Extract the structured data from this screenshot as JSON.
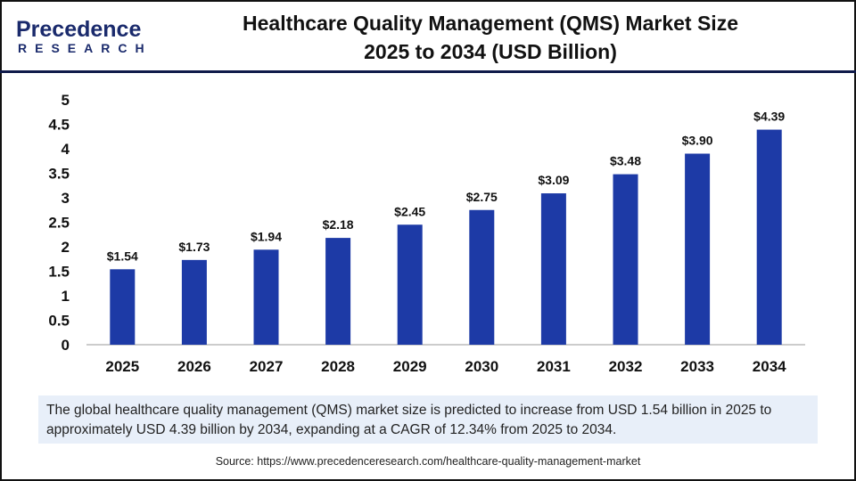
{
  "logo": {
    "top": "Precedence",
    "bottom": "RESEARCH"
  },
  "title_line1": "Healthcare Quality Management (QMS) Market Size",
  "title_line2": "2025 to 2034 (USD Billion)",
  "chart_data": {
    "type": "bar",
    "categories": [
      "2025",
      "2026",
      "2027",
      "2028",
      "2029",
      "2030",
      "2031",
      "2032",
      "2033",
      "2034"
    ],
    "values": [
      1.54,
      1.73,
      1.94,
      2.18,
      2.45,
      2.75,
      3.09,
      3.48,
      3.9,
      4.39
    ],
    "data_labels": [
      "$1.54",
      "$1.73",
      "$1.94",
      "$2.18",
      "$2.45",
      "$2.75",
      "$3.09",
      "$3.48",
      "$3.90",
      "$4.39"
    ],
    "ylim": [
      0,
      5
    ],
    "yticks": [
      "0",
      "0.5",
      "1",
      "1.5",
      "2",
      "2.5",
      "3",
      "3.5",
      "4",
      "4.5",
      "5"
    ],
    "grid": false,
    "bar_color": "#1d3aa6",
    "xlabel": "",
    "ylabel": ""
  },
  "summary": "The global healthcare quality management (QMS) market  size is predicted to increase from USD 1.54 billion in 2025 to approximately USD 4.39 billion by 2034, expanding at a CAGR of 12.34% from 2025 to 2034.",
  "source": "Source: https://www.precedenceresearch.com/healthcare-quality-management-market"
}
